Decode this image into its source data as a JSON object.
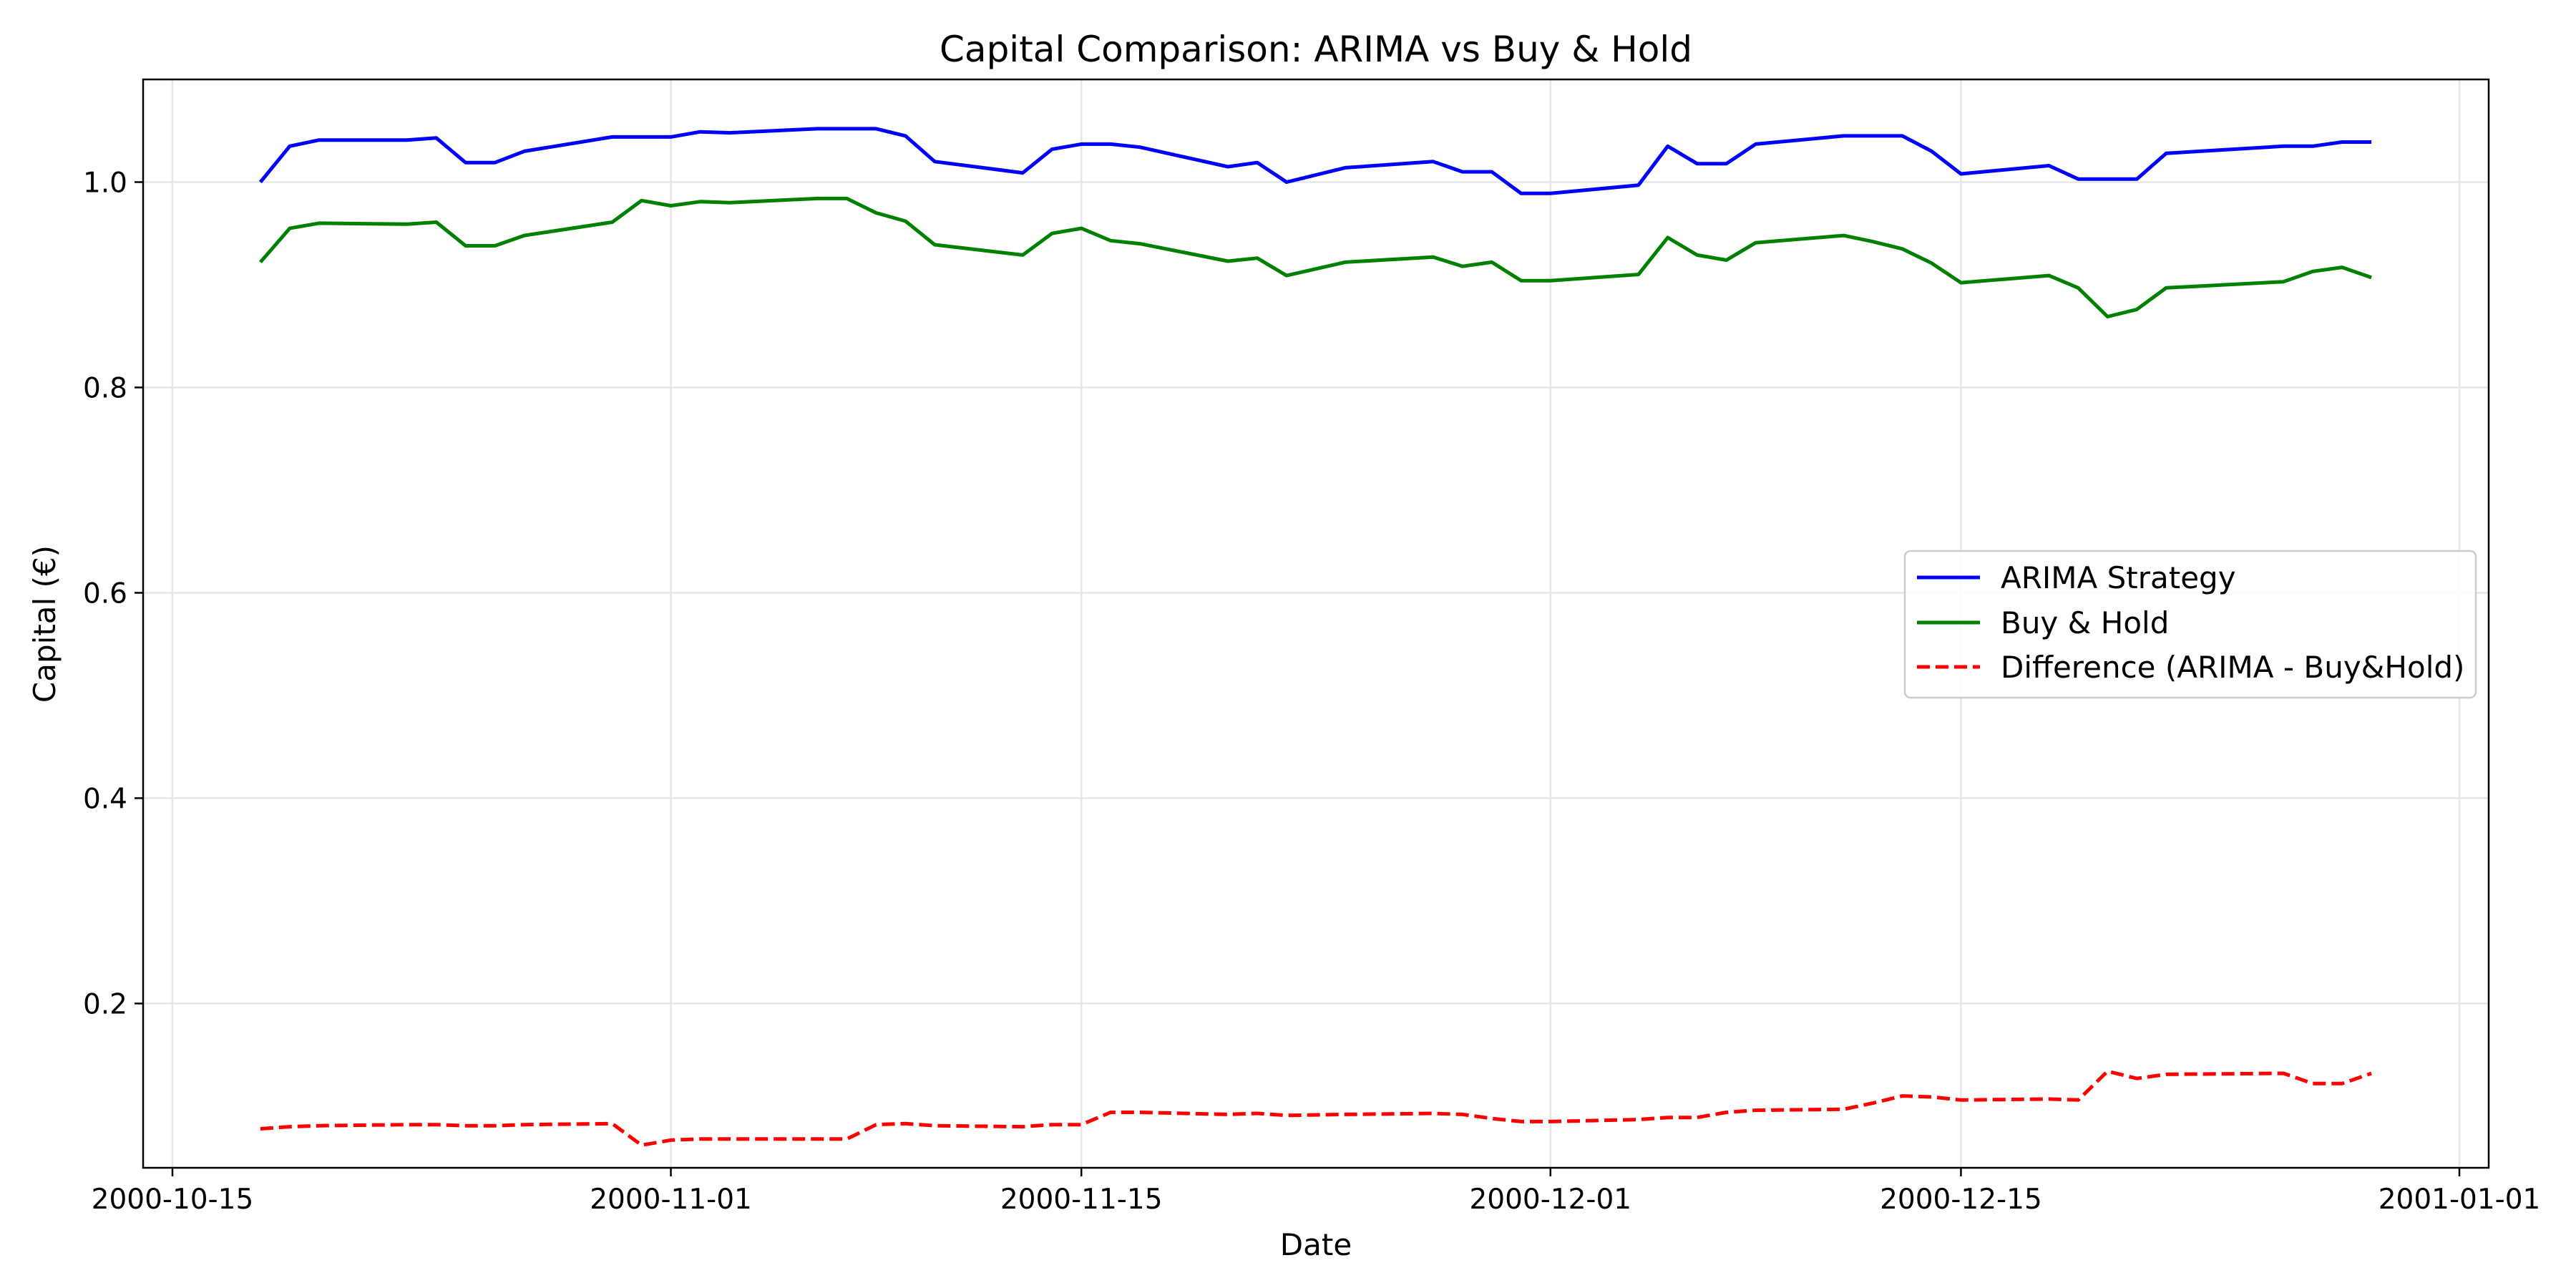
{
  "chart_data": {
    "type": "line",
    "title": "Capital Comparison: ARIMA vs Buy & Hold",
    "xlabel": "Date",
    "ylabel": "Capital (€)",
    "xlim": [
      "2000-10-14",
      "2001-01-02"
    ],
    "ylim": [
      0.04,
      1.1
    ],
    "grid": true,
    "legend_position": "center-right",
    "x_ticks": [
      "2000-10-15",
      "2000-11-01",
      "2000-11-15",
      "2000-12-01",
      "2000-12-15",
      "2001-01-01"
    ],
    "y_ticks": [
      0.2,
      0.4,
      0.6,
      0.8,
      1.0
    ],
    "y_tick_labels": [
      "0.2",
      "0.4",
      "0.6",
      "0.8",
      "1.0"
    ],
    "x": [
      "2000-10-18",
      "2000-10-19",
      "2000-10-20",
      "2000-10-23",
      "2000-10-24",
      "2000-10-25",
      "2000-10-26",
      "2000-10-27",
      "2000-10-30",
      "2000-10-31",
      "2000-11-01",
      "2000-11-02",
      "2000-11-03",
      "2000-11-06",
      "2000-11-07",
      "2000-11-08",
      "2000-11-09",
      "2000-11-10",
      "2000-11-13",
      "2000-11-14",
      "2000-11-15",
      "2000-11-16",
      "2000-11-17",
      "2000-11-20",
      "2000-11-21",
      "2000-11-22",
      "2000-11-24",
      "2000-11-27",
      "2000-11-28",
      "2000-11-29",
      "2000-11-30",
      "2000-12-01",
      "2000-12-04",
      "2000-12-05",
      "2000-12-06",
      "2000-12-07",
      "2000-12-08",
      "2000-12-11",
      "2000-12-12",
      "2000-12-13",
      "2000-12-14",
      "2000-12-15",
      "2000-12-18",
      "2000-12-19",
      "2000-12-20",
      "2000-12-21",
      "2000-12-22",
      "2000-12-26",
      "2000-12-27",
      "2000-12-28",
      "2000-12-29"
    ],
    "series": [
      {
        "name": "ARIMA Strategy",
        "color": "#0000ff",
        "style": "solid",
        "values": [
          1.0,
          1.035,
          1.041,
          1.041,
          1.043,
          1.019,
          1.019,
          1.03,
          1.044,
          1.044,
          1.044,
          1.049,
          1.048,
          1.052,
          1.052,
          1.052,
          1.045,
          1.02,
          1.009,
          1.032,
          1.037,
          1.037,
          1.034,
          1.015,
          1.019,
          1.0,
          1.014,
          1.02,
          1.01,
          1.01,
          0.989,
          0.989,
          0.997,
          1.035,
          1.018,
          1.018,
          1.037,
          1.045,
          1.045,
          1.045,
          1.03,
          1.008,
          1.016,
          1.003,
          1.003,
          1.003,
          1.028,
          1.035,
          1.035,
          1.039,
          1.039
        ]
      },
      {
        "name": "Buy & Hold",
        "color": "#008000",
        "style": "solid",
        "values": [
          0.922,
          0.955,
          0.96,
          0.959,
          0.961,
          0.938,
          0.938,
          0.948,
          0.961,
          0.982,
          0.977,
          0.981,
          0.98,
          0.984,
          0.984,
          0.97,
          0.962,
          0.939,
          0.929,
          0.95,
          0.955,
          0.943,
          0.94,
          0.923,
          0.926,
          0.909,
          0.922,
          0.927,
          0.918,
          0.922,
          0.904,
          0.904,
          0.91,
          0.946,
          0.929,
          0.924,
          0.941,
          0.948,
          0.942,
          0.935,
          0.921,
          0.902,
          0.909,
          0.897,
          0.869,
          0.876,
          0.897,
          0.903,
          0.913,
          0.917,
          0.907
        ]
      },
      {
        "name": "Difference (ARIMA - Buy&Hold)",
        "color": "#ff0000",
        "style": "dashed",
        "values": [
          0.078,
          0.08,
          0.081,
          0.082,
          0.082,
          0.081,
          0.081,
          0.082,
          0.083,
          0.062,
          0.067,
          0.068,
          0.068,
          0.068,
          0.068,
          0.082,
          0.083,
          0.081,
          0.08,
          0.082,
          0.082,
          0.094,
          0.094,
          0.092,
          0.093,
          0.091,
          0.092,
          0.093,
          0.092,
          0.088,
          0.085,
          0.085,
          0.087,
          0.089,
          0.089,
          0.094,
          0.096,
          0.097,
          0.103,
          0.11,
          0.109,
          0.106,
          0.107,
          0.106,
          0.134,
          0.127,
          0.131,
          0.132,
          0.122,
          0.122,
          0.132
        ]
      }
    ]
  }
}
